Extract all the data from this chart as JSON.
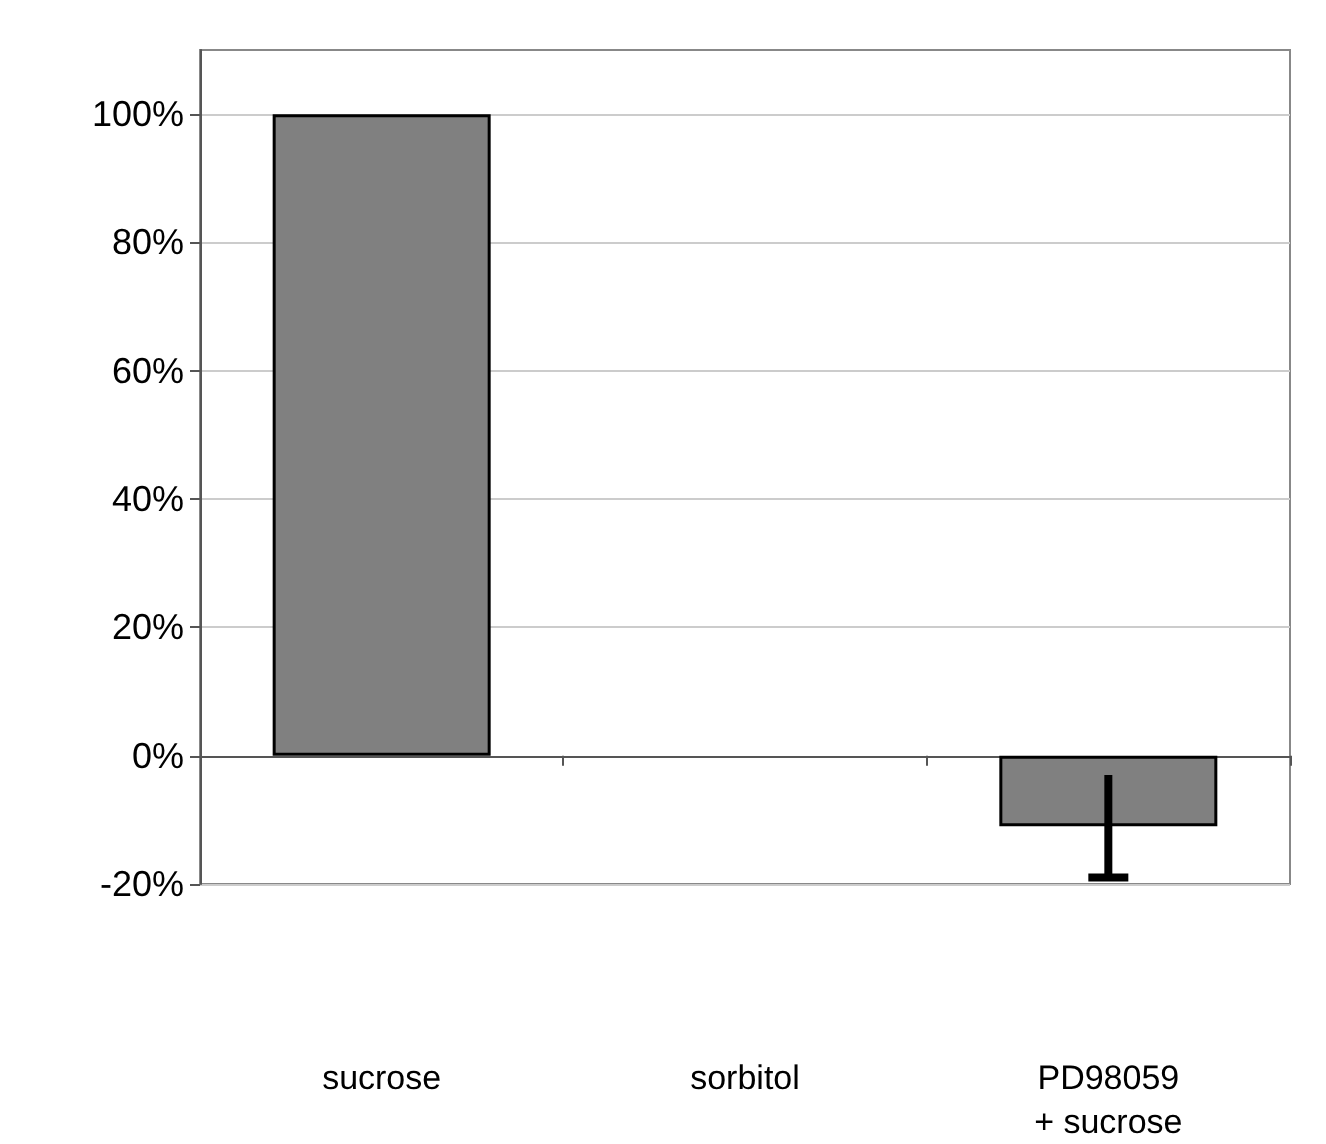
{
  "chart_data": {
    "type": "bar",
    "categories": [
      "sucrose",
      "sorbitol",
      "PD98059\n+ sucrose"
    ],
    "values": [
      100,
      0,
      -11
    ],
    "errors": [
      null,
      null,
      8
    ],
    "color": "#808080",
    "ylim": [
      -20,
      110
    ],
    "yticks": [
      {
        "value": -20,
        "label": "-20%"
      },
      {
        "value": 0,
        "label": "0%"
      },
      {
        "value": 20,
        "label": "20%"
      },
      {
        "value": 40,
        "label": "40%"
      },
      {
        "value": 60,
        "label": "60%"
      },
      {
        "value": 80,
        "label": "80%"
      },
      {
        "value": 100,
        "label": "100%"
      }
    ],
    "grid": "y"
  }
}
